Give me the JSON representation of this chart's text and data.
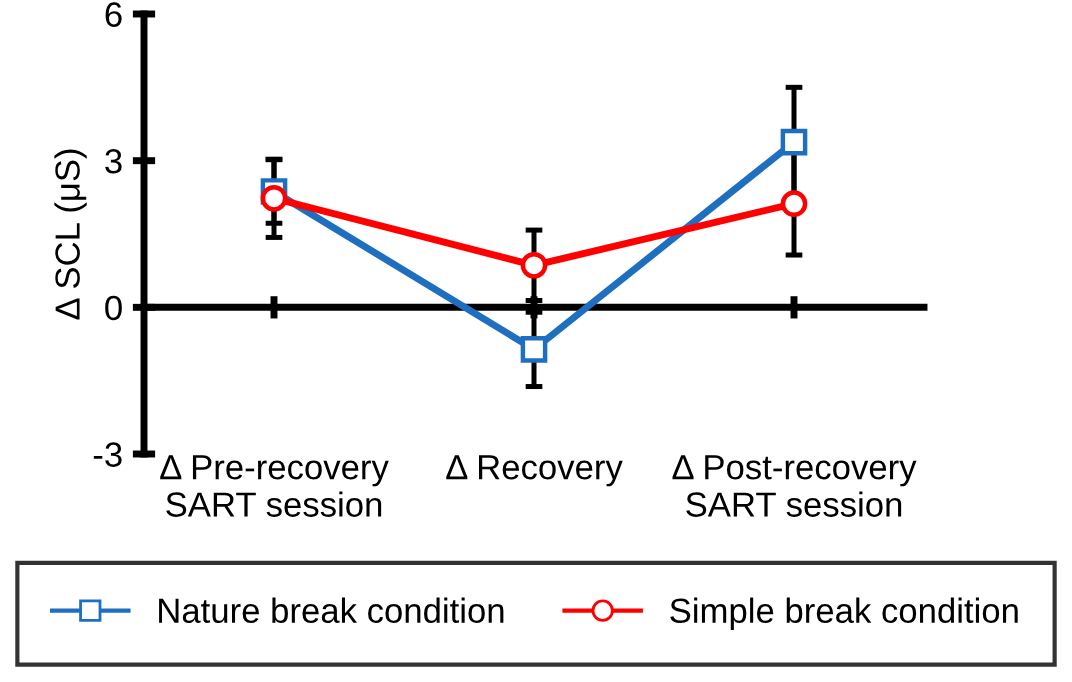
{
  "chart_data": {
    "type": "line",
    "ylabel": "Δ SCL (μS)",
    "categories": [
      "Δ Pre-recovery\nSART session",
      "Δ Recovery",
      "Δ Post-recovery\nSART session"
    ],
    "series": [
      {
        "name": "Nature break condition",
        "color": "#1f6fc0",
        "marker": "square",
        "values": [
          2.37,
          -0.86,
          3.38
        ],
        "errors": [
          0.65,
          0.76,
          1.12
        ]
      },
      {
        "name": "Simple break condition",
        "color": "#ff0000",
        "marker": "circle",
        "values": [
          2.23,
          0.86,
          2.12
        ],
        "errors": [
          0.8,
          0.72,
          1.05
        ]
      }
    ],
    "ylim": [
      -3,
      6
    ],
    "yticks": [
      {
        "value": -3,
        "label": "-3"
      },
      0,
      3,
      6
    ],
    "legend": "bottom",
    "line_style": "solid"
  }
}
